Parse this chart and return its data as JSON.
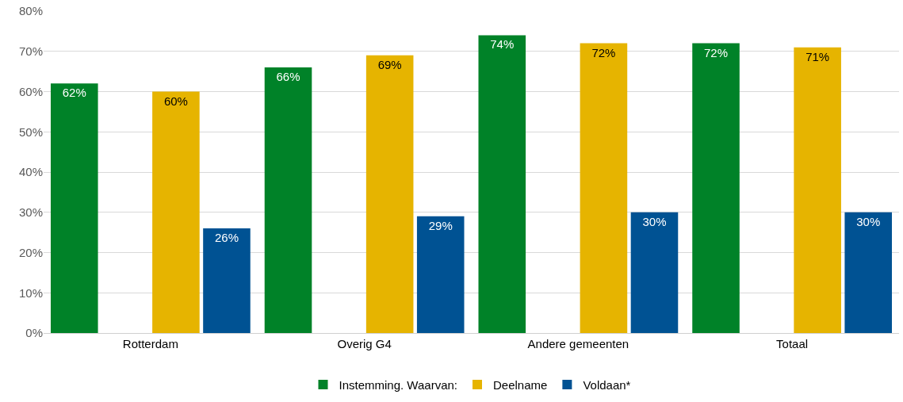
{
  "chart_data": {
    "type": "bar",
    "categories": [
      "Rotterdam",
      "Overig G4",
      "Andere gemeenten",
      "Totaal"
    ],
    "series": [
      {
        "name": "Instemming. Waarvan:",
        "color": "#008228",
        "values": [
          62,
          66,
          74,
          72
        ],
        "value_labels": [
          "62%",
          "66%",
          "74%",
          "72%"
        ]
      },
      {
        "values": [
          null,
          null,
          null,
          null
        ]
      },
      {
        "name": "Deelname",
        "color": "#e6b400",
        "values": [
          60,
          69,
          72,
          71
        ],
        "value_labels": [
          "60%",
          "69%",
          "72%",
          "71%"
        ]
      },
      {
        "name": "Voldaan*",
        "color": "#005293",
        "values": [
          26,
          29,
          30,
          30
        ],
        "value_labels": [
          "26%",
          "29%",
          "30%",
          "30%"
        ]
      }
    ],
    "ylim": [
      0,
      80
    ],
    "yticks": [
      {
        "value": 0,
        "label": "0%"
      },
      {
        "value": 10,
        "label": "10%"
      },
      {
        "value": 20,
        "label": "20%"
      },
      {
        "value": 30,
        "label": "30%"
      },
      {
        "value": 40,
        "label": "40%"
      },
      {
        "value": 50,
        "label": "50%"
      },
      {
        "value": 60,
        "label": "60%"
      },
      {
        "value": 70,
        "label": "70%"
      },
      {
        "value": 80,
        "label": "80%"
      }
    ],
    "grid": "y",
    "legend": "bottom"
  }
}
